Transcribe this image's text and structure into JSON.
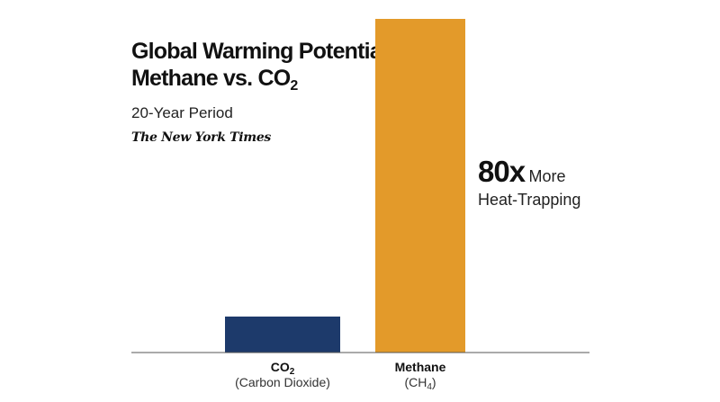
{
  "title": {
    "line1": "Global Warming Potential:",
    "line2_prefix": "Methane vs. CO",
    "line2_sub": "2",
    "subtitle": "20-Year Period",
    "source_logo": "The New York Times"
  },
  "callout": {
    "big": "80x",
    "small": "More",
    "line2": "Heat-Trapping"
  },
  "colors": {
    "co2": "#1d3a6b",
    "methane": "#e39a2a",
    "axis": "#555555"
  },
  "chart_data": {
    "type": "bar",
    "categories": [
      "CO2",
      "Methane"
    ],
    "category_labels": [
      {
        "main": "CO",
        "main_sub": "2",
        "detail": "(Carbon Dioxide)",
        "detail_sub": ""
      },
      {
        "main": "Methane",
        "main_sub": "",
        "detail": "(CH",
        "detail_sub": "4"
      }
    ],
    "values": [
      1,
      80
    ],
    "ylim": [
      0,
      80
    ],
    "title": "Global Warming Potential: Methane vs. CO2",
    "subtitle": "20-Year Period",
    "xlabel": "",
    "ylabel": "",
    "grid": false,
    "legend": "none"
  }
}
